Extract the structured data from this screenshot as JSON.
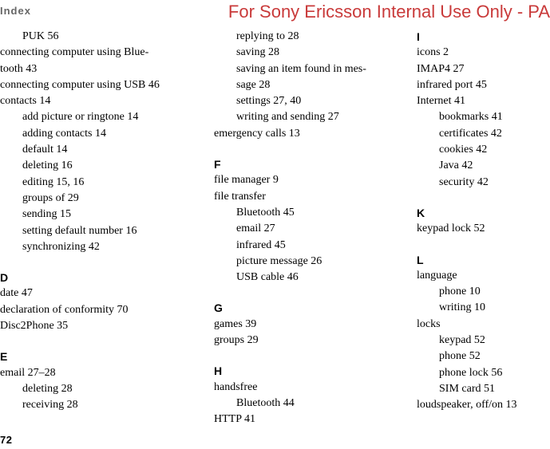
{
  "header": "Index",
  "watermark": "For Sony Ericsson Internal Use Only - PA",
  "pagenum": "72",
  "col1": [
    {
      "indent": 1,
      "text": "PUK 56"
    },
    {
      "indent": 0,
      "just": true,
      "text": "connecting computer using Blue-"
    },
    {
      "indent": 0,
      "text": "tooth 43"
    },
    {
      "indent": 0,
      "text": "connecting computer using USB 46"
    },
    {
      "indent": 0,
      "text": "contacts 14"
    },
    {
      "indent": 1,
      "text": "add picture or ringtone 14"
    },
    {
      "indent": 1,
      "text": "adding contacts 14"
    },
    {
      "indent": 1,
      "text": "default 14"
    },
    {
      "indent": 1,
      "text": "deleting 16"
    },
    {
      "indent": 1,
      "text": "editing 15, 16"
    },
    {
      "indent": 1,
      "text": "groups of 29"
    },
    {
      "indent": 1,
      "text": "sending 15"
    },
    {
      "indent": 1,
      "text": "setting default number 16"
    },
    {
      "indent": 1,
      "text": "synchronizing 42"
    },
    {
      "letter": "D"
    },
    {
      "indent": 0,
      "text": "date 47"
    },
    {
      "indent": 0,
      "text": "declaration of conformity 70"
    },
    {
      "indent": 0,
      "text": "Disc2Phone 35"
    },
    {
      "letter": "E"
    },
    {
      "indent": 0,
      "text": "email 27–28"
    },
    {
      "indent": 1,
      "text": "deleting 28"
    },
    {
      "indent": 1,
      "text": "receiving 28"
    }
  ],
  "col2": [
    {
      "indent": 1,
      "text": "replying to 28"
    },
    {
      "indent": 1,
      "text": "saving 28"
    },
    {
      "indent": 1,
      "just": true,
      "text": "saving an item found in mes-"
    },
    {
      "indent": 1,
      "text": "sage 28"
    },
    {
      "indent": 1,
      "text": "settings 27, 40"
    },
    {
      "indent": 1,
      "text": "writing and sending 27"
    },
    {
      "indent": 0,
      "text": "emergency calls 13"
    },
    {
      "letter": "F"
    },
    {
      "indent": 0,
      "text": "file manager 9"
    },
    {
      "indent": 0,
      "text": "file transfer"
    },
    {
      "indent": 1,
      "text": "Bluetooth 45"
    },
    {
      "indent": 1,
      "text": "email 27"
    },
    {
      "indent": 1,
      "text": "infrared 45"
    },
    {
      "indent": 1,
      "text": "picture message 26"
    },
    {
      "indent": 1,
      "text": "USB cable 46"
    },
    {
      "letter": "G"
    },
    {
      "indent": 0,
      "text": "games 39"
    },
    {
      "indent": 0,
      "text": "groups 29"
    },
    {
      "letter": "H"
    },
    {
      "indent": 0,
      "text": "handsfree"
    },
    {
      "indent": 1,
      "text": "Bluetooth 44"
    },
    {
      "indent": 0,
      "text": "HTTP 41"
    }
  ],
  "col3": [
    {
      "letter": "I",
      "mt0": true
    },
    {
      "indent": 0,
      "text": "icons 2"
    },
    {
      "indent": 0,
      "text": "IMAP4 27"
    },
    {
      "indent": 0,
      "text": "infrared port 45"
    },
    {
      "indent": 0,
      "text": "Internet 41"
    },
    {
      "indent": 1,
      "text": "bookmarks 41"
    },
    {
      "indent": 1,
      "text": "certificates 42"
    },
    {
      "indent": 1,
      "text": "cookies 42"
    },
    {
      "indent": 1,
      "text": "Java 42"
    },
    {
      "indent": 1,
      "text": "security 42"
    },
    {
      "letter": "K"
    },
    {
      "indent": 0,
      "text": "keypad lock 52"
    },
    {
      "letter": "L"
    },
    {
      "indent": 0,
      "text": "language"
    },
    {
      "indent": 1,
      "text": "phone 10"
    },
    {
      "indent": 1,
      "text": "writing 10"
    },
    {
      "indent": 0,
      "text": "locks"
    },
    {
      "indent": 1,
      "text": "keypad 52"
    },
    {
      "indent": 1,
      "text": "phone 52"
    },
    {
      "indent": 1,
      "text": "phone lock 56"
    },
    {
      "indent": 1,
      "text": "SIM card 51"
    },
    {
      "indent": 0,
      "text": "loudspeaker, off/on 13"
    }
  ]
}
